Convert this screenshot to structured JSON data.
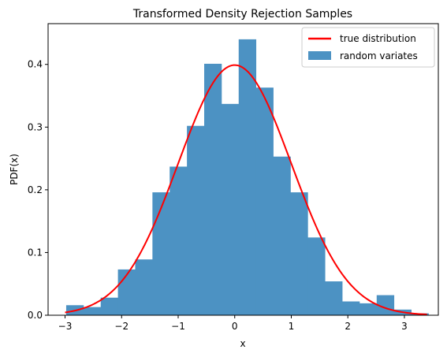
{
  "chart_data": {
    "type": "bar",
    "title": "Transformed Density Rejection Samples",
    "xlabel": "x",
    "ylabel": "PDF(x)",
    "xlim": [
      -3.3,
      3.6
    ],
    "ylim": [
      0,
      0.465
    ],
    "xticks": [
      -3,
      -2,
      -1,
      0,
      1,
      2,
      3
    ],
    "xtick_labels": [
      "−3",
      "−2",
      "−1",
      "0",
      "1",
      "2",
      "3"
    ],
    "yticks": [
      0.0,
      0.1,
      0.2,
      0.3,
      0.4
    ],
    "ytick_labels": [
      "0.0",
      "0.1",
      "0.2",
      "0.3",
      "0.4"
    ],
    "grid": false,
    "legend_position": "top-right",
    "series": [
      {
        "name": "random variates",
        "kind": "histogram",
        "color": "#4c92c3",
        "bin_edges": [
          -2.98,
          -2.675,
          -2.37,
          -2.065,
          -1.76,
          -1.455,
          -1.15,
          -0.845,
          -0.54,
          -0.235,
          0.07,
          0.375,
          0.68,
          0.985,
          1.29,
          1.595,
          1.9,
          2.205,
          2.51,
          2.815,
          3.12,
          3.425
        ],
        "values": [
          0.016,
          0.013,
          0.028,
          0.073,
          0.089,
          0.196,
          0.237,
          0.302,
          0.401,
          0.337,
          0.44,
          0.363,
          0.253,
          0.196,
          0.124,
          0.054,
          0.022,
          0.019,
          0.032,
          0.009,
          0.003
        ]
      },
      {
        "name": "true distribution",
        "kind": "line",
        "color": "#ff0000",
        "function": "standard normal pdf",
        "x_range": [
          -3.0,
          3.4
        ]
      }
    ]
  }
}
